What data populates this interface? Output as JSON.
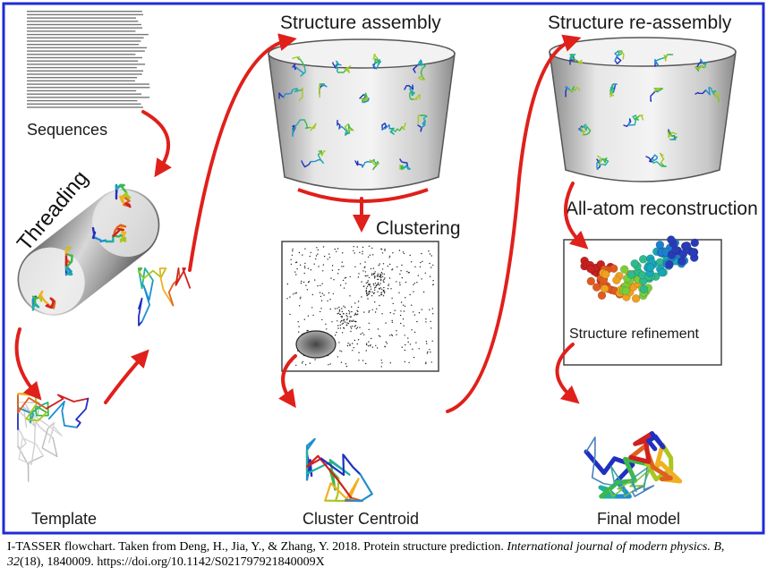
{
  "labels": {
    "sequences": "Sequences",
    "threading": "Threading",
    "template": "Template",
    "structure_assembly": "Structure assembly",
    "clustering": "Clustering",
    "cluster_centroid": "Cluster Centroid",
    "structure_reassembly": "Structure re-assembly",
    "all_atom_reconstruction": "All-atom reconstruction",
    "structure_refinement": "Structure refinement",
    "final_model": "Final model"
  },
  "caption": {
    "part1": "I-TASSER flowchart. Taken from Deng, H., Jia, Y., & Zhang, Y. 2018. Protein structure prediction. ",
    "journal": "International journal of modern physics. B",
    "part2": ", ",
    "volume": "32",
    "part3": "(18), 1840009. https://doi.org/10.1142/S021797921840009X"
  },
  "colors": {
    "frame": "#1f2bd6",
    "arrow": "#e0201b",
    "ribbon_palette": [
      "#2030c0",
      "#1f8fd0",
      "#20b0a0",
      "#3cb84a",
      "#a8c820",
      "#f0b020",
      "#e06020",
      "#d02020"
    ]
  }
}
